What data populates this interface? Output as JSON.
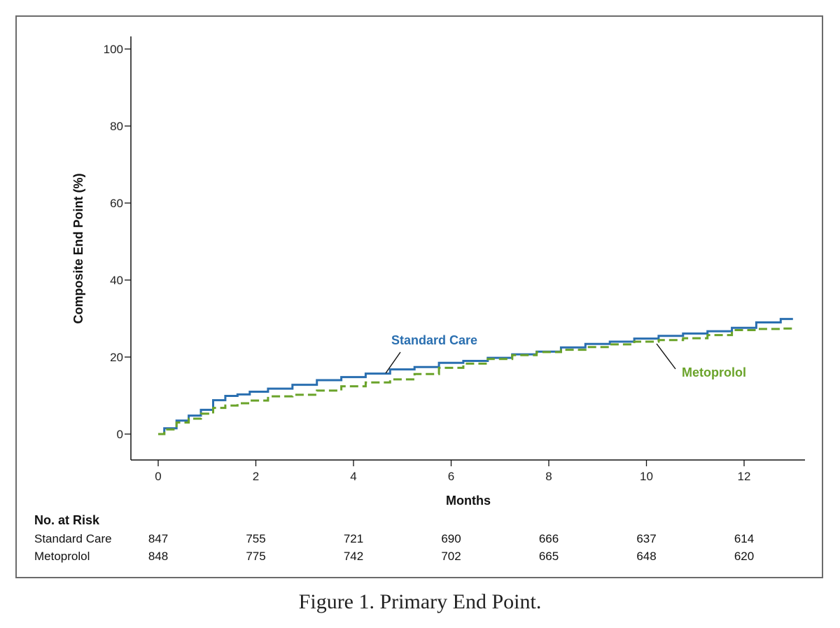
{
  "caption": "Figure 1.  Primary End Point.",
  "colors": {
    "standard_care": "#2a6fb0",
    "metoprolol": "#6aa32a",
    "axis": "#111111",
    "frame": "#6b6b6b"
  },
  "chart_data": {
    "type": "line",
    "title": "",
    "xlabel": "Months",
    "ylabel": "Composite End Point (%)",
    "xlim": [
      0,
      13
    ],
    "ylim": [
      0,
      100
    ],
    "x_ticks": [
      0,
      2,
      4,
      6,
      8,
      10,
      12
    ],
    "y_ticks": [
      0,
      20,
      40,
      60,
      80,
      100
    ],
    "grid": false,
    "series": [
      {
        "name": "Standard Care",
        "style": "solid",
        "x": [
          0,
          0.25,
          0.5,
          0.75,
          1.0,
          1.25,
          1.5,
          1.75,
          2.0,
          2.5,
          3.0,
          3.5,
          4.0,
          4.5,
          5.0,
          5.5,
          6.0,
          6.5,
          7.0,
          7.5,
          8.0,
          8.5,
          9.0,
          9.5,
          10.0,
          10.5,
          11.0,
          11.5,
          12.0,
          12.5,
          13.0
        ],
        "y": [
          0,
          1.5,
          3.5,
          4.8,
          6.3,
          8.8,
          9.9,
          10.3,
          11.0,
          11.8,
          12.8,
          14.0,
          14.8,
          15.7,
          16.8,
          17.4,
          18.5,
          19.0,
          19.8,
          20.7,
          21.4,
          22.5,
          23.4,
          24.0,
          24.8,
          25.5,
          26.1,
          26.7,
          27.6,
          29.0,
          29.9
        ]
      },
      {
        "name": "Metoprolol",
        "style": "dashed",
        "x": [
          0,
          0.25,
          0.5,
          0.75,
          1.0,
          1.25,
          1.5,
          1.75,
          2.0,
          2.5,
          3.0,
          3.5,
          4.0,
          4.5,
          5.0,
          5.5,
          6.0,
          6.5,
          7.0,
          7.5,
          8.0,
          8.5,
          9.0,
          9.5,
          10.0,
          10.5,
          11.0,
          11.5,
          12.0,
          12.5,
          13.0
        ],
        "y": [
          0,
          1.2,
          3.0,
          4.0,
          5.3,
          6.8,
          7.4,
          8.0,
          8.7,
          9.8,
          10.2,
          11.3,
          12.4,
          13.4,
          14.2,
          15.6,
          17.2,
          18.3,
          19.5,
          20.5,
          21.3,
          21.9,
          22.6,
          23.3,
          24.0,
          24.4,
          24.9,
          25.7,
          27.0,
          27.3,
          27.4
        ]
      }
    ],
    "annotations": [
      {
        "text": "Standard Care",
        "series": "Standard Care"
      },
      {
        "text": "Metoprolol",
        "series": "Metoprolol"
      }
    ],
    "risk_table": {
      "title": "No. at Risk",
      "times": [
        0,
        2,
        4,
        6,
        8,
        10,
        12
      ],
      "rows": [
        {
          "label": "Standard Care",
          "values": [
            847,
            755,
            721,
            690,
            666,
            637,
            614
          ]
        },
        {
          "label": "Metoprolol",
          "values": [
            848,
            775,
            742,
            702,
            665,
            648,
            620
          ]
        }
      ]
    }
  }
}
